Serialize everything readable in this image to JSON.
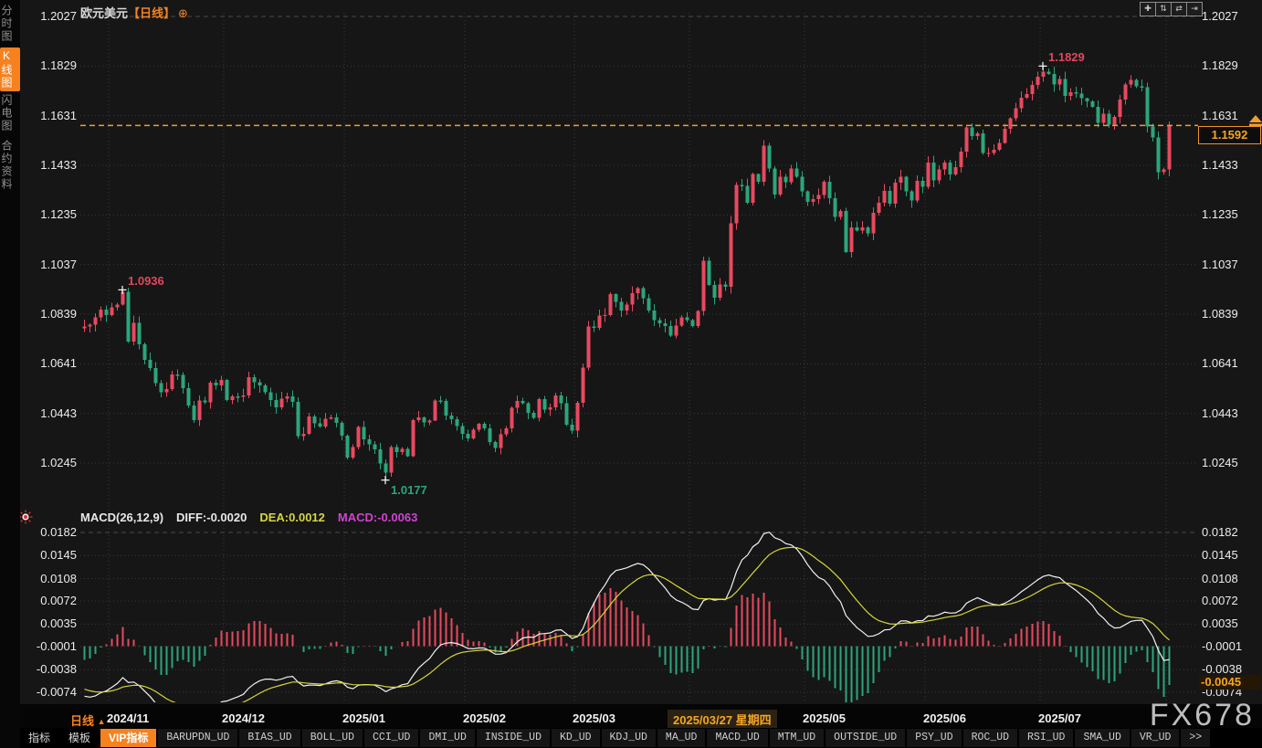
{
  "app": {
    "watermark": "FX678"
  },
  "sidebar": {
    "tabs": [
      {
        "label": "分时图",
        "active": false
      },
      {
        "label": "K线图",
        "active": true
      },
      {
        "label": "闪电图",
        "active": false
      },
      {
        "label": "合约资料",
        "active": false
      }
    ]
  },
  "header": {
    "symbol": "欧元美元",
    "period_tag": "【日线】",
    "add_icon": "⊕"
  },
  "topbar": {
    "buttons": [
      {
        "name": "crosshair-tool-button",
        "glyph": "✚"
      },
      {
        "name": "fit-vertical-axis-button",
        "glyph": "⇅"
      },
      {
        "name": "fit-horizontal-axis-button",
        "glyph": "⇄"
      },
      {
        "name": "goto-latest-button",
        "glyph": "⇥"
      }
    ]
  },
  "price_axis": {
    "ticks": [
      "1.2027",
      "1.1829",
      "1.1631",
      "1.1433",
      "1.1235",
      "1.1037",
      "1.0839",
      "1.0641",
      "1.0443",
      "1.0245"
    ],
    "current_price": "1.1592"
  },
  "macd_axis": {
    "ticks": [
      "0.0182",
      "0.0145",
      "0.0108",
      "0.0072",
      "0.0035",
      "-0.0001",
      "-0.0038",
      "-0.0074"
    ],
    "current_value": "-0.0045"
  },
  "indicator_header": {
    "name": "MACD(26,12,9)",
    "diff": "DIFF:-0.0020",
    "dea": "DEA:0.0012",
    "macd": "MACD:-0.0063"
  },
  "timeline": {
    "period_label": "日线",
    "period_arrow": "▲"
  },
  "toolbar": {
    "items": [
      {
        "label": "指标",
        "type": "tab"
      },
      {
        "label": "模板",
        "type": "tab"
      },
      {
        "label": "VIP指标",
        "type": "vip"
      },
      {
        "label": "BARUPDN_UD",
        "type": "indicator"
      },
      {
        "label": "BIAS_UD",
        "type": "indicator"
      },
      {
        "label": "BOLL_UD",
        "type": "indicator"
      },
      {
        "label": "CCI_UD",
        "type": "indicator"
      },
      {
        "label": "DMI_UD",
        "type": "indicator"
      },
      {
        "label": "INSIDE_UD",
        "type": "indicator"
      },
      {
        "label": "KD_UD",
        "type": "indicator"
      },
      {
        "label": "KDJ_UD",
        "type": "indicator"
      },
      {
        "label": "MA_UD",
        "type": "indicator"
      },
      {
        "label": "MACD_UD",
        "type": "indicator"
      },
      {
        "label": "MTM_UD",
        "type": "indicator"
      },
      {
        "label": "OUTSIDE_UD",
        "type": "indicator"
      },
      {
        "label": "PSY_UD",
        "type": "indicator"
      },
      {
        "label": "ROC_UD",
        "type": "indicator"
      },
      {
        "label": "RSI_UD",
        "type": "indicator"
      },
      {
        "label": "SMA_UD",
        "type": "indicator"
      },
      {
        "label": "VR_UD",
        "type": "indicator"
      },
      {
        "label": ">>",
        "type": "more"
      }
    ]
  },
  "colors": {
    "up": "#e8495f",
    "down": "#2ca57b",
    "accent": "#f5821f",
    "price_line": "#f09d30",
    "diff_line": "#f2f2f2",
    "dea_line": "#d6d63e",
    "macd_value_text": "#d042d0",
    "grid": "#3a3a3a",
    "grid_dash": "#4a4a4a",
    "high_label": "#e0485c",
    "low_label": "#2ca57b"
  },
  "chart_data": {
    "type": "candlestick_with_macd",
    "title": "欧元美元 日线 (EUR/USD daily)",
    "macd_params": [
      26,
      12,
      9
    ],
    "y_ticks_main": [
      1.2027,
      1.1829,
      1.1631,
      1.1433,
      1.1235,
      1.1037,
      1.0839,
      1.0641,
      1.0443,
      1.0245
    ],
    "y_ticks_macd": [
      0.0182,
      0.0145,
      0.0108,
      0.0072,
      0.0035,
      -0.0001,
      -0.0038,
      -0.0074
    ],
    "current_price": 1.1592,
    "current_macd_hist": -0.0045,
    "open_first": 1.0782,
    "closes": [
      1.079,
      1.0798,
      1.0826,
      1.0858,
      1.0835,
      1.0866,
      1.0878,
      1.0928,
      1.073,
      1.0805,
      1.0718,
      1.0657,
      1.0624,
      1.0563,
      1.0527,
      1.054,
      1.0598,
      1.0597,
      1.0543,
      1.0475,
      1.0417,
      1.0495,
      1.0488,
      1.0566,
      1.0554,
      1.0577,
      1.0497,
      1.0511,
      1.051,
      1.0514,
      1.0588,
      1.0567,
      1.0554,
      1.0527,
      1.0496,
      1.0467,
      1.0502,
      1.0511,
      1.0489,
      1.0353,
      1.0362,
      1.043,
      1.0404,
      1.039,
      1.0422,
      1.0427,
      1.0406,
      1.0354,
      1.0266,
      1.0308,
      1.0389,
      1.034,
      1.0319,
      1.03,
      1.0244,
      1.0206,
      1.0308,
      1.0289,
      1.0302,
      1.0273,
      1.0417,
      1.0428,
      1.0408,
      1.0415,
      1.0495,
      1.0492,
      1.0434,
      1.042,
      1.0392,
      1.0362,
      1.0344,
      1.0378,
      1.0401,
      1.0384,
      1.0328,
      1.0306,
      1.036,
      1.0384,
      1.0466,
      1.0492,
      1.0484,
      1.0445,
      1.0425,
      1.05,
      1.0458,
      1.0467,
      1.0514,
      1.0484,
      1.0398,
      1.0375,
      1.0486,
      1.0625,
      1.079,
      1.0785,
      1.0834,
      1.0836,
      1.0919,
      1.0889,
      1.0853,
      1.0878,
      1.0922,
      1.0943,
      1.0903,
      1.0853,
      1.0815,
      1.0802,
      1.0792,
      1.0754,
      1.0794,
      1.0827,
      1.0816,
      1.0792,
      1.0851,
      1.1052,
      1.0956,
      1.0905,
      1.0957,
      1.0948,
      1.1201,
      1.1355,
      1.1351,
      1.1284,
      1.1398,
      1.1368,
      1.1512,
      1.1421,
      1.1316,
      1.1388,
      1.1366,
      1.1421,
      1.1387,
      1.1329,
      1.1287,
      1.1299,
      1.1315,
      1.1368,
      1.1301,
      1.1228,
      1.125,
      1.1087,
      1.1185,
      1.1173,
      1.1186,
      1.1162,
      1.1244,
      1.1284,
      1.1331,
      1.128,
      1.1363,
      1.1388,
      1.1329,
      1.1292,
      1.1371,
      1.1347,
      1.1444,
      1.1372,
      1.1417,
      1.1444,
      1.1397,
      1.1425,
      1.1487,
      1.1584,
      1.1549,
      1.1561,
      1.1482,
      1.1483,
      1.1495,
      1.1522,
      1.1578,
      1.1621,
      1.166,
      1.1702,
      1.1718,
      1.1754,
      1.1787,
      1.1806,
      1.1798,
      1.1756,
      1.1778,
      1.171,
      1.1725,
      1.1719,
      1.17,
      1.1689,
      1.1666,
      1.1602,
      1.1639,
      1.1595,
      1.1626,
      1.1695,
      1.1755,
      1.1774,
      1.1748,
      1.1744,
      1.1588,
      1.1545,
      1.1406,
      1.1417,
      1.1592
    ],
    "macd_warmup_closes": [
      1.119,
      1.1178,
      1.1165,
      1.1152,
      1.114,
      1.1132,
      1.112,
      1.1102,
      1.1085,
      1.1069,
      1.105,
      1.1033,
      1.1019,
      1.1,
      1.0985,
      1.0972,
      1.096,
      1.0945,
      1.093,
      1.0918,
      1.0905,
      1.089,
      1.0878,
      1.0866,
      1.0846,
      1.082
    ],
    "months": [
      {
        "label": "2024/11",
        "start": 5,
        "highlight": false
      },
      {
        "label": "2024/12",
        "start": 26,
        "highlight": false
      },
      {
        "label": "2025/01",
        "start": 48,
        "highlight": false
      },
      {
        "label": "2025/02",
        "start": 70,
        "highlight": false
      },
      {
        "label": "2025/03",
        "start": 90,
        "highlight": false
      },
      {
        "label": "2025/03/27 星期四",
        "start": 111,
        "highlight": true
      },
      {
        "label": "2025/05",
        "start": 132,
        "highlight": false
      },
      {
        "label": "2025/06",
        "start": 154,
        "highlight": false
      },
      {
        "label": "2025/07",
        "start": 175,
        "highlight": false
      },
      {
        "label": "",
        "start": 198,
        "highlight": false
      }
    ],
    "annotations": [
      {
        "index": 7,
        "type": "high",
        "price": 1.0936,
        "label": "1.0936"
      },
      {
        "index": 55,
        "type": "low",
        "price": 1.0177,
        "label": "1.0177"
      },
      {
        "index": 175,
        "type": "high",
        "price": 1.1829,
        "label": "1.1829"
      }
    ]
  }
}
